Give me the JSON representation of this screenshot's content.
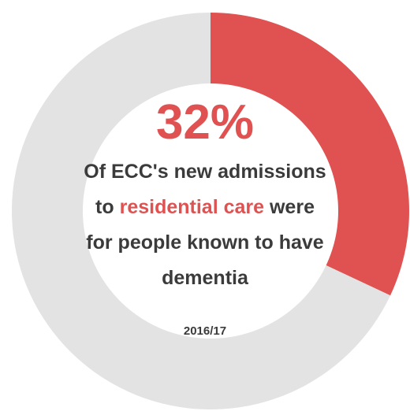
{
  "chart_data": {
    "type": "pie",
    "style": "donut",
    "value_label": "32%",
    "slices": [
      {
        "value": 32,
        "color": "#e05251"
      },
      {
        "value": 68,
        "color": "#e3e3e3"
      }
    ],
    "description": {
      "part1": "Of ECC's new admissions",
      "part2": "to",
      "highlight": "residential care",
      "part3": "were",
      "part4": "for people known to have",
      "part5": "dementia"
    },
    "period": "2016/17"
  },
  "colors": {
    "accent": "#e05251",
    "track": "#e3e3e3",
    "text": "#3b3b3b"
  }
}
